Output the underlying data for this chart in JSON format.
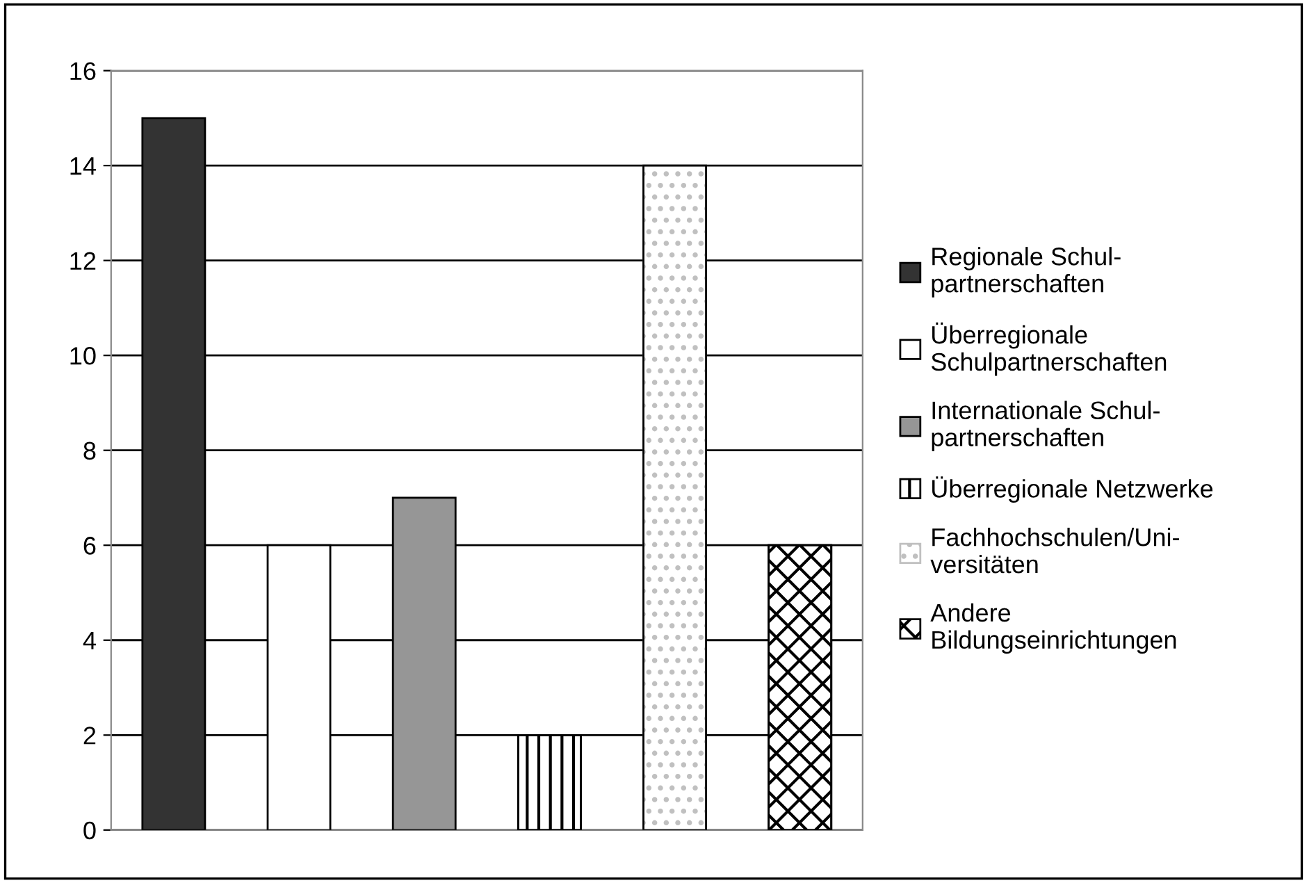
{
  "chart_data": {
    "type": "bar",
    "categories": [
      null,
      null,
      null,
      null,
      null,
      null
    ],
    "series": [
      {
        "name": "Regionale Schul-\npartnerschaften",
        "color": "#333333",
        "values": [
          15,
          null,
          null,
          null,
          null,
          null
        ]
      },
      {
        "name": "Überregionale\nSchulpartnerschaften",
        "color": "#ffffff",
        "values": [
          null,
          6,
          null,
          null,
          null,
          null
        ]
      },
      {
        "name": "Internationale Schul-\npartnerschaften",
        "color": "#969696",
        "values": [
          null,
          null,
          7,
          null,
          null,
          null
        ]
      },
      {
        "name": "Überregionale Netzwerke",
        "color": "#000000",
        "values": [
          null,
          null,
          null,
          2,
          null,
          null
        ]
      },
      {
        "name": "Fachhochschulen/Uni-\nversitäten",
        "color": "#c0c0c0",
        "values": [
          null,
          null,
          null,
          null,
          14,
          null
        ]
      },
      {
        "name": "Andere\nBildungseinrichtungen",
        "color": "#000000",
        "values": [
          null,
          null,
          null,
          null,
          null,
          6
        ]
      }
    ],
    "ylim": [
      0,
      16
    ],
    "yticks": [
      0,
      2,
      4,
      6,
      8,
      10,
      12,
      14,
      16
    ],
    "grid": "y",
    "legend": "right",
    "tick_labels": "y"
  }
}
